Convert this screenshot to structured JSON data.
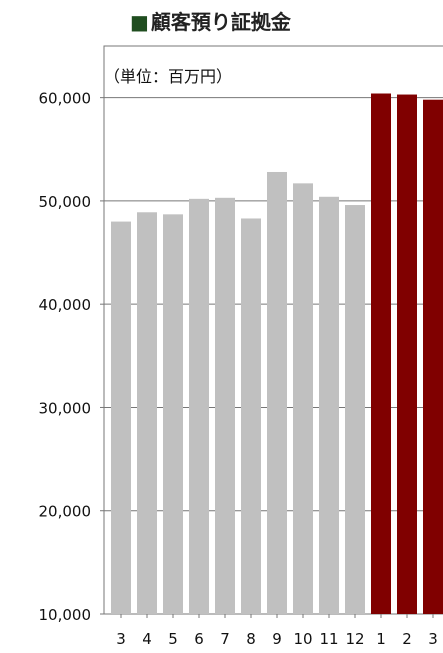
{
  "chart_data": {
    "type": "bar",
    "title": "■顧客預り証拠金",
    "unit_label": "（単位：百万円）",
    "categories": [
      "3",
      "4",
      "5",
      "6",
      "7",
      "8",
      "9",
      "10",
      "11",
      "12",
      "1",
      "2",
      "3"
    ],
    "values": [
      48000,
      48900,
      48700,
      50200,
      50300,
      48300,
      52800,
      51700,
      50400,
      49600,
      60400,
      60300,
      59800
    ],
    "bar_colors": [
      "#c0c0c0",
      "#c0c0c0",
      "#c0c0c0",
      "#c0c0c0",
      "#c0c0c0",
      "#c0c0c0",
      "#c0c0c0",
      "#c0c0c0",
      "#c0c0c0",
      "#c0c0c0",
      "#800000",
      "#800000",
      "#800000"
    ],
    "ylim": [
      10000,
      65000
    ],
    "yticks": [
      10000,
      20000,
      30000,
      40000,
      50000,
      60000
    ],
    "ytick_labels": [
      "10,000",
      "20,000",
      "30,000",
      "40,000",
      "50,000",
      "60,000"
    ],
    "grid": true,
    "legend": "none"
  }
}
